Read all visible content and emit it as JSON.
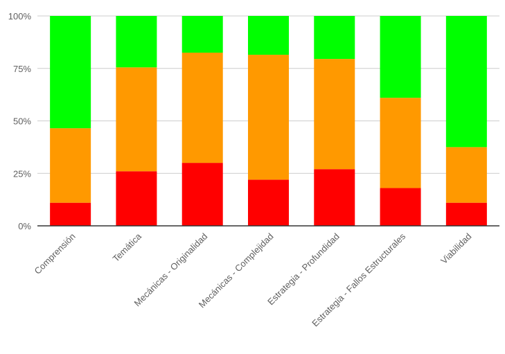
{
  "chart_data": {
    "type": "bar",
    "stacked": true,
    "normalized": true,
    "title": "",
    "xlabel": "",
    "ylabel": "",
    "ylim": [
      0,
      100
    ],
    "yticks": [
      "0%",
      "25%",
      "50%",
      "75%",
      "100%"
    ],
    "ytick_values": [
      0,
      25,
      50,
      75,
      100
    ],
    "grid": true,
    "legend": "none",
    "categories": [
      "Comprensión",
      "Temática",
      "Mecánicas - Originalidad",
      "Mecánicas - Complejidad",
      "Estrategia - Profundidad",
      "Estrategia - Fallos Estructurales",
      "Viabilidad"
    ],
    "series": [
      {
        "color": "#ff0000",
        "values": [
          11,
          26,
          30,
          22,
          27,
          18,
          11
        ]
      },
      {
        "color": "#ff9900",
        "values": [
          35.5,
          49.5,
          52.5,
          59.5,
          52.5,
          43,
          26.5
        ]
      },
      {
        "color": "#00ff00",
        "values": [
          53.5,
          24.5,
          17.5,
          18.5,
          20.5,
          39,
          62.5
        ]
      }
    ]
  }
}
